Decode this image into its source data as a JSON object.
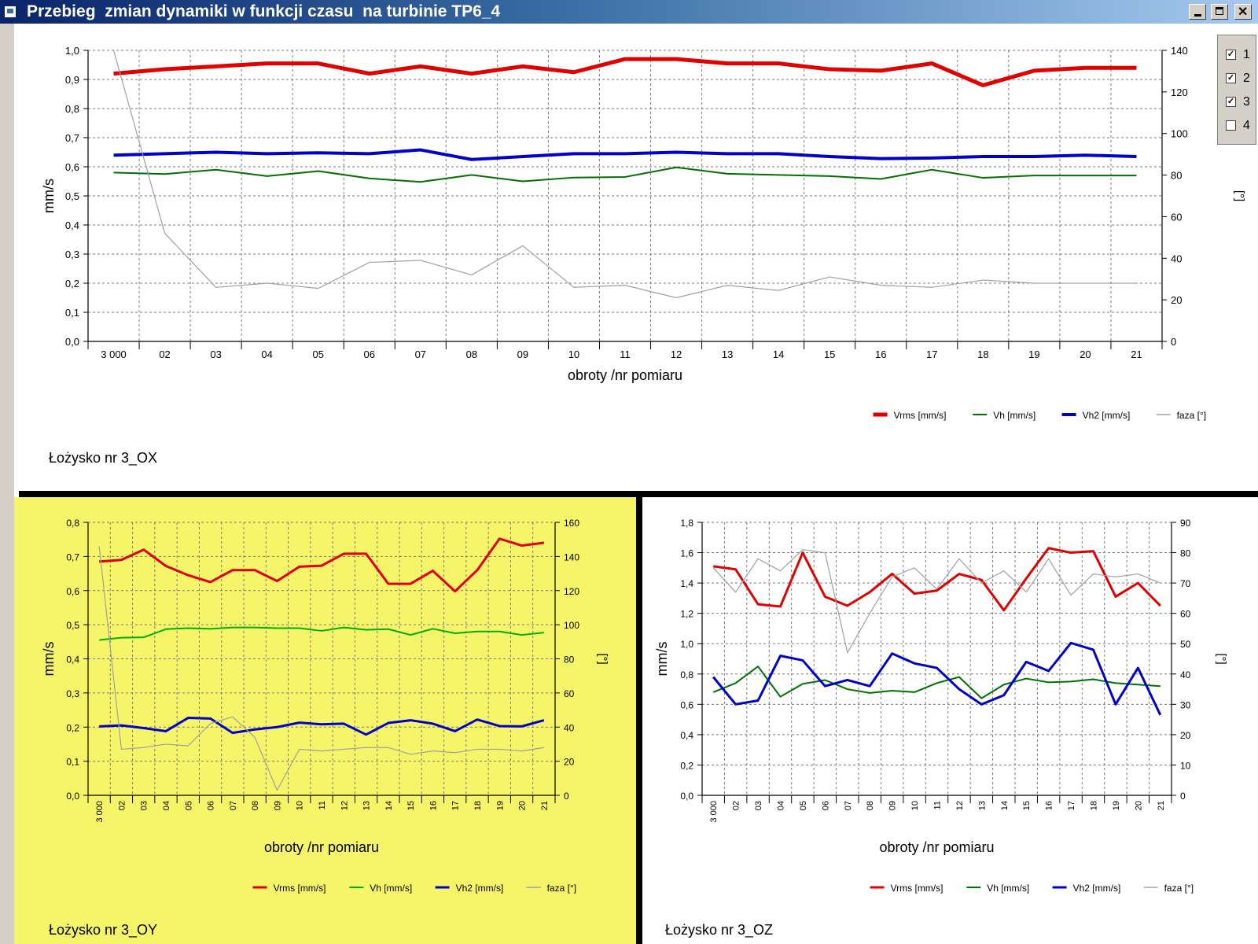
{
  "window": {
    "title": "Przebieg  zmian dynamiki w funkcji czasu  na turbinie TP6_4"
  },
  "checkboxes": [
    {
      "label": "1",
      "checked": true
    },
    {
      "label": "2",
      "checked": true
    },
    {
      "label": "3",
      "checked": true
    },
    {
      "label": "4",
      "checked": false
    }
  ],
  "chart_data": [
    {
      "type": "line",
      "panel": "top",
      "panel_label": "Łożysko nr 3_OX",
      "background": "#ffffff",
      "xlabel": "obroty  /nr pomiaru",
      "ylabel": "mm/s",
      "y2label": "[°]",
      "categories": [
        "3 000",
        "02",
        "03",
        "04",
        "05",
        "06",
        "07",
        "08",
        "09",
        "10",
        "11",
        "12",
        "13",
        "14",
        "15",
        "16",
        "17",
        "18",
        "19",
        "20",
        "21"
      ],
      "ylim": [
        0,
        1.0
      ],
      "yticks": [
        0,
        0.1,
        0.2,
        0.3,
        0.4,
        0.5,
        0.6,
        0.7,
        0.8,
        0.9,
        1.0
      ],
      "yticklabels": [
        "0,0",
        "0,1",
        "0,2",
        "0,3",
        "0,4",
        "0,5",
        "0,6",
        "0,7",
        "0,8",
        "0,9",
        "1,0"
      ],
      "y2lim": [
        0,
        140
      ],
      "y2ticks": [
        0,
        20,
        40,
        60,
        80,
        100,
        120,
        140
      ],
      "y2ticklabels": [
        "0",
        "20",
        "40",
        "60",
        "80",
        "100",
        "120",
        "140"
      ],
      "xticklabel_rotation": "horizontal",
      "legend_position": "bottom-right",
      "grid": true,
      "series": [
        {
          "name": "Vrms [mm/s]",
          "axis": "left",
          "color": "#e00000",
          "width": 5,
          "values": [
            0.92,
            0.935,
            0.945,
            0.955,
            0.955,
            0.92,
            0.945,
            0.92,
            0.945,
            0.925,
            0.97,
            0.97,
            0.955,
            0.955,
            0.935,
            0.93,
            0.955,
            0.88,
            0.93,
            0.94,
            0.94
          ]
        },
        {
          "name": "Vh [mm/s]",
          "axis": "left",
          "color": "#007000",
          "width": 2,
          "values": [
            0.58,
            0.575,
            0.59,
            0.568,
            0.585,
            0.56,
            0.548,
            0.572,
            0.55,
            0.563,
            0.565,
            0.598,
            0.576,
            0.572,
            0.568,
            0.558,
            0.59,
            0.562,
            0.57,
            0.57,
            0.57
          ]
        },
        {
          "name": "Vh2 [mm/s]",
          "axis": "left",
          "color": "#0000c8",
          "width": 4,
          "values": [
            0.64,
            0.645,
            0.65,
            0.645,
            0.648,
            0.645,
            0.658,
            0.625,
            0.635,
            0.645,
            0.645,
            0.65,
            0.645,
            0.645,
            0.635,
            0.628,
            0.63,
            0.635,
            0.635,
            0.64,
            0.635
          ]
        },
        {
          "name": "faza  [°]",
          "axis": "right",
          "color": "#a0a0a0",
          "width": 1.2,
          "values": [
            140,
            52,
            26,
            28,
            25.5,
            38,
            39,
            32,
            46,
            26,
            27,
            21,
            27,
            24.5,
            31,
            27,
            26,
            29.5,
            28,
            28,
            28
          ]
        }
      ]
    },
    {
      "type": "line",
      "panel": "bottom-left",
      "panel_label": "Łożysko nr 3_OY",
      "background": "#f6f56a",
      "xlabel": "obroty  /nr pomiaru",
      "ylabel": "mm/s",
      "y2label": "[°]",
      "categories": [
        "3 000",
        "02",
        "03",
        "04",
        "05",
        "06",
        "07",
        "08",
        "09",
        "10",
        "11",
        "12",
        "13",
        "14",
        "15",
        "16",
        "17",
        "18",
        "19",
        "20",
        "21"
      ],
      "ylim": [
        0,
        0.8
      ],
      "yticks": [
        0,
        0.1,
        0.2,
        0.3,
        0.4,
        0.5,
        0.6,
        0.7,
        0.8
      ],
      "yticklabels": [
        "0,0",
        "0,1",
        "0,2",
        "0,3",
        "0,4",
        "0,5",
        "0,6",
        "0,7",
        "0,8"
      ],
      "y2lim": [
        0,
        160
      ],
      "y2ticks": [
        0,
        20,
        40,
        60,
        80,
        100,
        120,
        140,
        160
      ],
      "y2ticklabels": [
        "0",
        "20",
        "40",
        "60",
        "80",
        "100",
        "120",
        "140",
        "160"
      ],
      "xticklabel_rotation": "vertical",
      "legend_position": "bottom-right",
      "grid": true,
      "series": [
        {
          "name": "Vrms [mm/s]",
          "axis": "left",
          "color": "#e00000",
          "width": 3,
          "values": [
            0.685,
            0.69,
            0.72,
            0.672,
            0.645,
            0.625,
            0.66,
            0.66,
            0.628,
            0.67,
            0.673,
            0.708,
            0.708,
            0.62,
            0.62,
            0.658,
            0.598,
            0.66,
            0.752,
            0.732,
            0.74
          ]
        },
        {
          "name": "Vh [mm/s]",
          "axis": "left",
          "color": "#00b000",
          "width": 2,
          "values": [
            0.455,
            0.462,
            0.463,
            0.487,
            0.49,
            0.488,
            0.492,
            0.492,
            0.49,
            0.49,
            0.482,
            0.492,
            0.485,
            0.487,
            0.47,
            0.488,
            0.475,
            0.48,
            0.48,
            0.47,
            0.477
          ]
        },
        {
          "name": "Vh2 [mm/s]",
          "axis": "left",
          "color": "#0000c8",
          "width": 3,
          "values": [
            0.202,
            0.205,
            0.197,
            0.188,
            0.227,
            0.225,
            0.183,
            0.193,
            0.2,
            0.213,
            0.208,
            0.21,
            0.178,
            0.212,
            0.22,
            0.21,
            0.188,
            0.222,
            0.203,
            0.202,
            0.22
          ]
        },
        {
          "name": "faza  [°]",
          "axis": "right",
          "color": "#a0a0a0",
          "width": 1.2,
          "values": [
            146,
            27,
            28,
            30,
            29,
            42,
            46,
            34,
            3,
            27,
            26,
            27,
            28,
            28,
            24,
            26,
            25,
            27,
            27,
            26,
            28
          ]
        }
      ]
    },
    {
      "type": "line",
      "panel": "bottom-right",
      "panel_label": "Łożysko nr 3_OZ",
      "background": "#ffffff",
      "xlabel": "obroty  /nr pomiaru",
      "ylabel": "mm/s",
      "y2label": "[°]",
      "categories": [
        "3 000",
        "02",
        "03",
        "04",
        "05",
        "06",
        "07",
        "08",
        "09",
        "10",
        "11",
        "12",
        "13",
        "14",
        "15",
        "16",
        "17",
        "18",
        "19",
        "20",
        "21"
      ],
      "ylim": [
        0,
        1.8
      ],
      "yticks": [
        0,
        0.2,
        0.4,
        0.6,
        0.8,
        1.0,
        1.2,
        1.4,
        1.6,
        1.8
      ],
      "yticklabels": [
        "0,0",
        "0,2",
        "0,4",
        "0,6",
        "0,8",
        "1,0",
        "1,2",
        "1,4",
        "1,6",
        "1,8"
      ],
      "y2lim": [
        0,
        90
      ],
      "y2ticks": [
        0,
        10,
        20,
        30,
        40,
        50,
        60,
        70,
        80,
        90
      ],
      "y2ticklabels": [
        "0",
        "10",
        "20",
        "30",
        "40",
        "50",
        "60",
        "70",
        "80",
        "90"
      ],
      "xticklabel_rotation": "vertical",
      "legend_position": "bottom-right",
      "grid": true,
      "series": [
        {
          "name": "Vrms [mm/s]",
          "axis": "left",
          "color": "#e00000",
          "width": 3,
          "values": [
            1.51,
            1.49,
            1.26,
            1.245,
            1.6,
            1.31,
            1.25,
            1.34,
            1.46,
            1.33,
            1.35,
            1.46,
            1.42,
            1.22,
            1.43,
            1.63,
            1.6,
            1.61,
            1.31,
            1.4,
            1.25
          ]
        },
        {
          "name": "Vh [mm/s]",
          "axis": "left",
          "color": "#007000",
          "width": 2,
          "values": [
            0.68,
            0.74,
            0.85,
            0.65,
            0.735,
            0.76,
            0.7,
            0.675,
            0.69,
            0.68,
            0.74,
            0.78,
            0.64,
            0.73,
            0.77,
            0.745,
            0.75,
            0.765,
            0.74,
            0.73,
            0.72
          ]
        },
        {
          "name": "Vh2 [mm/s]",
          "axis": "left",
          "color": "#0000c8",
          "width": 3,
          "values": [
            0.78,
            0.6,
            0.625,
            0.92,
            0.89,
            0.72,
            0.76,
            0.72,
            0.935,
            0.87,
            0.84,
            0.7,
            0.6,
            0.66,
            0.88,
            0.82,
            1.005,
            0.96,
            0.6,
            0.84,
            0.53
          ]
        },
        {
          "name": "faza  [°]",
          "axis": "right",
          "color": "#a0a0a0",
          "width": 1.2,
          "values": [
            75,
            67,
            78,
            74,
            81,
            80,
            47,
            60,
            72,
            75,
            68,
            78,
            70,
            74,
            67,
            78,
            66,
            73,
            72,
            73,
            70
          ]
        }
      ]
    }
  ]
}
